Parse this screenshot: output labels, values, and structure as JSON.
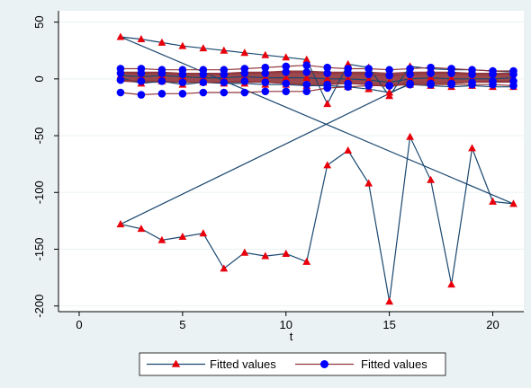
{
  "chart_data": {
    "type": "line",
    "xlabel": "t",
    "ylabel": "",
    "xlim": [
      -1,
      21.5
    ],
    "ylim": [
      -205,
      60
    ],
    "x_ticks": [
      0,
      5,
      10,
      15,
      20
    ],
    "y_ticks": [
      50,
      0,
      -50,
      -100,
      -150,
      -200
    ],
    "grid": "horizontal",
    "legend_position": "bottom",
    "colors": {
      "red_series_line": "#1a476f",
      "red_series_marker": "#e8000b",
      "blue_series_line": "#90353b",
      "blue_series_marker": "#0000ff",
      "band_fill": "#90353b",
      "plot_background": "#ffffff",
      "page_background": "#eaf2f3",
      "grid": "#eaf2f3"
    },
    "series": [
      {
        "name": "Fitted values",
        "marker": "triangle",
        "groups": [
          {
            "x": [
              2,
              3,
              4,
              5,
              6,
              7,
              8,
              9,
              10,
              11,
              12,
              13,
              14,
              15,
              16,
              17,
              18,
              19,
              20,
              21
            ],
            "y": [
              37,
              35,
              32,
              29,
              27,
              25,
              23,
              21,
              19,
              17,
              -22,
              13,
              10,
              -15,
              11,
              9,
              8,
              8,
              7,
              6
            ]
          },
          {
            "x": [
              2,
              3,
              4,
              5,
              6,
              7,
              8,
              9,
              10,
              11,
              12,
              13,
              14,
              15,
              16,
              17,
              18,
              19,
              20,
              21
            ],
            "y": [
              -128,
              -132,
              -142,
              -139,
              -136,
              -167,
              -153,
              -156,
              -154,
              -161,
              -76,
              -63,
              -92,
              -196,
              -51,
              -89,
              -181,
              -61,
              -108,
              -110
            ]
          },
          {
            "x": [
              2,
              3,
              4,
              5,
              6,
              7,
              8,
              9,
              10,
              11,
              12,
              13,
              14,
              15,
              16,
              17,
              18,
              19,
              20,
              21
            ],
            "y": [
              1,
              -4,
              -2,
              -5,
              -3,
              -4,
              -4,
              -5,
              -5,
              -6,
              -6,
              -7,
              -9,
              -12,
              -5,
              -6,
              -7,
              -6,
              -7,
              -7
            ]
          },
          {
            "x": [
              2,
              3,
              4,
              5,
              6,
              7,
              8,
              9,
              10,
              11,
              12,
              13,
              14,
              15,
              16,
              17,
              18,
              19,
              20,
              21
            ],
            "y": [
              3,
              2,
              3,
              2,
              1,
              1,
              2,
              1,
              1,
              1,
              0,
              0,
              -1,
              -3,
              0,
              1,
              0,
              0,
              0,
              1
            ]
          }
        ]
      },
      {
        "name": "Fitted values",
        "marker": "circle",
        "groups": [
          {
            "x": [
              2,
              3,
              4,
              5,
              6,
              7,
              8,
              9,
              10,
              11,
              12,
              13,
              14,
              15,
              16,
              17,
              18,
              19,
              20,
              21
            ],
            "y": [
              -12,
              -14,
              -13,
              -13,
              -12,
              -12,
              -12,
              -11,
              -11,
              -11,
              -8,
              -7,
              -6,
              -6,
              -5,
              -5,
              -5,
              -5,
              -5,
              -6
            ]
          },
          {
            "x": [
              2,
              3,
              4,
              5,
              6,
              7,
              8,
              9,
              10,
              11,
              12,
              13,
              14,
              15,
              16,
              17,
              18,
              19,
              20,
              21
            ],
            "y": [
              9,
              9,
              8,
              8,
              8,
              8,
              9,
              10,
              11,
              12,
              10,
              9,
              9,
              8,
              9,
              10,
              9,
              8,
              7,
              7
            ]
          },
          {
            "x": [
              2,
              3,
              4,
              5,
              6,
              7,
              8,
              9,
              10,
              11,
              12,
              13,
              14,
              15,
              16,
              17,
              18,
              19,
              20,
              21
            ],
            "y": [
              -1,
              -2,
              -2,
              -3,
              -3,
              -3,
              -2,
              -3,
              -4,
              -5,
              -5,
              -4,
              -5,
              -6,
              -4,
              -4,
              -4,
              -3,
              -2,
              -2
            ]
          },
          {
            "x": [
              2,
              3,
              4,
              5,
              6,
              7,
              8,
              9,
              10,
              11,
              12,
              13,
              14,
              15,
              16,
              17,
              18,
              19,
              20,
              21
            ],
            "y": [
              5,
              5,
              5,
              4,
              4,
              4,
              5,
              5,
              6,
              6,
              5,
              5,
              4,
              3,
              4,
              5,
              5,
              4,
              4,
              4
            ]
          }
        ]
      }
    ],
    "crossing_lines": [
      {
        "x": [
          2,
          21
        ],
        "y": [
          37,
          -110
        ]
      },
      {
        "x": [
          2,
          16
        ],
        "y": [
          -128,
          -4
        ]
      }
    ],
    "band": {
      "x": [
        2,
        3,
        4,
        5,
        6,
        7,
        8,
        9,
        10,
        11,
        12,
        13,
        14,
        15,
        16,
        17,
        18,
        19,
        20,
        21
      ],
      "upper": [
        6,
        6,
        6,
        5,
        5,
        5,
        6,
        6,
        7,
        7,
        6,
        6,
        6,
        5,
        6,
        6,
        6,
        5,
        5,
        5
      ],
      "lower": [
        -2,
        -3,
        -3,
        -3,
        -3,
        -3,
        -3,
        -3,
        -4,
        -5,
        -5,
        -4,
        -5,
        -7,
        -4,
        -4,
        -4,
        -3,
        -3,
        -3
      ]
    },
    "legend": [
      {
        "label": "Fitted values",
        "marker": "triangle"
      },
      {
        "label": "Fitted values",
        "marker": "circle"
      }
    ]
  }
}
